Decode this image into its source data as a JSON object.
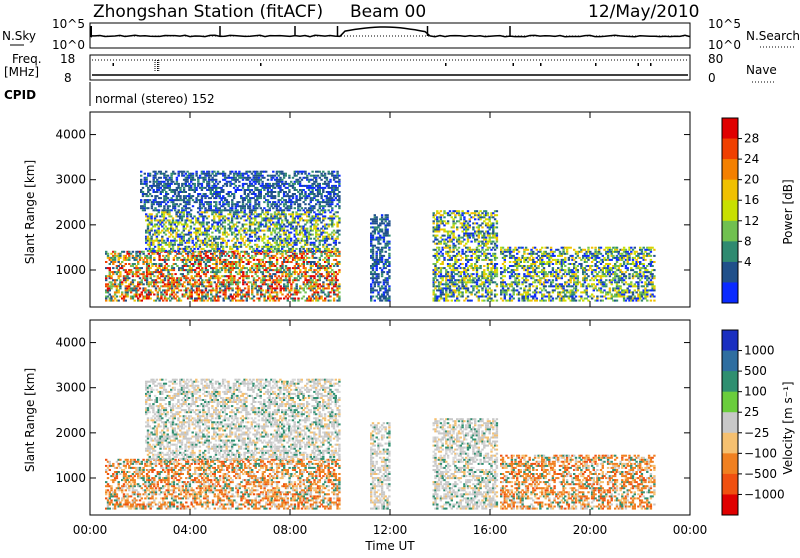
{
  "header": {
    "title_station": "Zhongshan Station (fitACF)",
    "title_beam": "Beam 00",
    "title_date": "12/May/2010"
  },
  "status_panels": {
    "left_labels": [
      "N.Sky",
      "Freq.",
      "[MHz]",
      "CPID"
    ],
    "right_labels": [
      "N.Search",
      "Nave"
    ],
    "nsky_ticks": [
      "10^5",
      "10^0"
    ],
    "nsearch_ticks": [
      "10^5",
      "10^0"
    ],
    "freq_ticks": [
      "18",
      "8"
    ],
    "nave_ticks": [
      "80",
      "0"
    ],
    "cpid_text": "normal (stereo) 152"
  },
  "chart_data": [
    {
      "type": "heatmap",
      "panel": "power",
      "ylabel": "Slant Range [km]",
      "xlabel": "",
      "ylim": [
        180,
        4500
      ],
      "yticks": [
        1000,
        2000,
        3000,
        4000
      ],
      "xlim": [
        "00:00",
        "24:00"
      ],
      "colorbar": {
        "label": "Power [dB]",
        "ticks": [
          "28",
          "24",
          "20",
          "16",
          "12",
          "8",
          "4"
        ],
        "colors": [
          "#e00000",
          "#f04000",
          "#f48000",
          "#f0c000",
          "#c8e000",
          "#70c050",
          "#2f8a70",
          "#20508a",
          "#0a2aff"
        ]
      },
      "echo_regions": [
        {
          "t0": 0.6,
          "t1": 10.0,
          "r0": 300,
          "r1": 1400,
          "level": "high"
        },
        {
          "t0": 2.2,
          "t1": 10.0,
          "r0": 1400,
          "r1": 2300,
          "level": "mid"
        },
        {
          "t0": 2.0,
          "t1": 10.0,
          "r0": 2300,
          "r1": 3200,
          "level": "low"
        },
        {
          "t0": 11.2,
          "t1": 12.0,
          "r0": 300,
          "r1": 2200,
          "level": "low"
        },
        {
          "t0": 13.7,
          "t1": 16.3,
          "r0": 300,
          "r1": 2300,
          "level": "mid"
        },
        {
          "t0": 16.4,
          "t1": 22.6,
          "r0": 300,
          "r1": 1500,
          "level": "mid"
        }
      ]
    },
    {
      "type": "heatmap",
      "panel": "velocity",
      "ylabel": "Slant Range [km]",
      "xlabel": "Time UT",
      "ylim": [
        180,
        4500
      ],
      "yticks": [
        1000,
        2000,
        3000,
        4000
      ],
      "xticks": [
        "00:00",
        "04:00",
        "08:00",
        "12:00",
        "16:00",
        "20:00",
        "00:00"
      ],
      "colorbar": {
        "label": "Velocity [m s⁻¹]",
        "ticks": [
          "1000",
          "500",
          "100",
          "25",
          "−25",
          "−100",
          "−500",
          "−1000"
        ],
        "colors": [
          "#1a2fc0",
          "#2f6ea0",
          "#2f8f70",
          "#6acd3c",
          "#c8c8c8",
          "#f5c070",
          "#f08020",
          "#f05010",
          "#e00000"
        ]
      },
      "echo_regions": [
        {
          "t0": 0.6,
          "t1": 10.0,
          "r0": 300,
          "r1": 1400,
          "level": "neg"
        },
        {
          "t0": 2.2,
          "t1": 10.0,
          "r0": 1400,
          "r1": 3200,
          "level": "zero"
        },
        {
          "t0": 11.2,
          "t1": 12.0,
          "r0": 300,
          "r1": 2200,
          "level": "zero"
        },
        {
          "t0": 13.7,
          "t1": 16.3,
          "r0": 300,
          "r1": 2300,
          "level": "zero"
        },
        {
          "t0": 16.4,
          "t1": 22.6,
          "r0": 300,
          "r1": 1500,
          "level": "neg"
        }
      ]
    }
  ]
}
